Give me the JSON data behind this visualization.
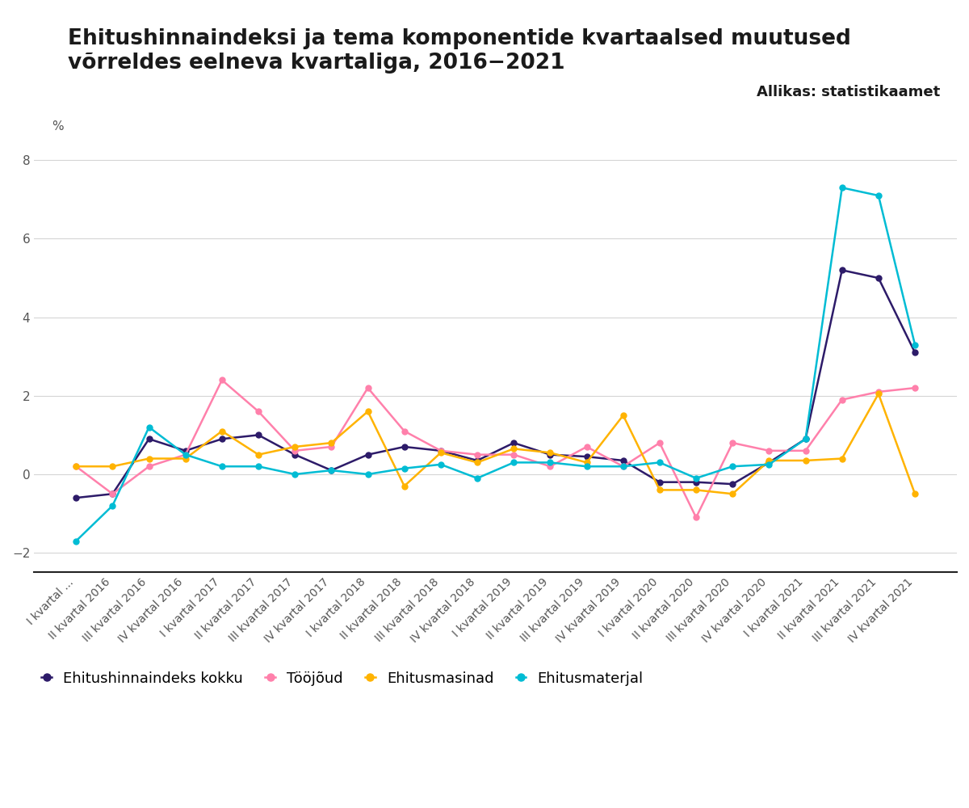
{
  "title_line1": "Ehitushinnaindeksi ja tema komponentide kvartaalsed muutused",
  "title_line2": "võrreldes eelneva kvartaliga, 2016−2021",
  "source": "Allikas: statistikaamet",
  "percent_label": "%",
  "ylim": [
    -2.5,
    8.5
  ],
  "yticks": [
    -2,
    0,
    2,
    4,
    6,
    8
  ],
  "background_color": "#ffffff",
  "colors": {
    "Ehitushinnaindeks kokku": "#2d1b69",
    "Tööjõud": "#ff80ab",
    "Ehitusmasinad": "#ffb300",
    "Ehitusmaterjal": "#00bcd4"
  },
  "series_data": {
    "Ehitushinnaindeks kokku": [
      -0.6,
      -0.5,
      0.9,
      0.6,
      0.9,
      1.0,
      0.5,
      0.1,
      0.5,
      0.7,
      0.6,
      0.35,
      0.8,
      0.5,
      0.45,
      0.35,
      -0.2,
      -0.2,
      -0.25,
      0.3,
      0.9,
      5.2,
      5.0,
      3.1
    ],
    "Tööjõud": [
      0.2,
      -0.5,
      0.2,
      0.5,
      2.4,
      1.6,
      0.6,
      0.7,
      2.2,
      1.1,
      0.6,
      0.5,
      0.5,
      0.2,
      0.7,
      0.2,
      0.8,
      -1.1,
      0.8,
      0.6,
      0.6,
      1.9,
      2.1,
      2.2
    ],
    "Ehitusmasinad": [
      0.2,
      0.2,
      0.4,
      0.4,
      1.1,
      0.5,
      0.7,
      0.8,
      1.6,
      -0.3,
      0.55,
      0.3,
      0.65,
      0.55,
      0.3,
      1.5,
      -0.4,
      -0.4,
      -0.5,
      0.35,
      0.35,
      0.4,
      2.05,
      -0.5
    ],
    "Ehitusmaterjal": [
      -1.7,
      -0.8,
      1.2,
      0.5,
      0.2,
      0.2,
      0.0,
      0.1,
      0.0,
      0.15,
      0.25,
      -0.1,
      0.3,
      0.3,
      0.2,
      0.2,
      0.3,
      -0.1,
      0.2,
      0.25,
      0.9,
      7.3,
      7.1,
      3.3
    ]
  },
  "x_labels": [
    "I kvartal ...",
    "II kvartal 2016",
    "III kvartal 2016",
    "IV kvartal 2016",
    "I kvartal 2017",
    "II kvartal 2017",
    "III kvartal 2017",
    "IV kvartal 2017",
    "I kvartal 2018",
    "II kvartal 2018",
    "III kvartal 2018",
    "IV kvartal 2018",
    "I kvartal 2019",
    "II kvartal 2019",
    "III kvartal 2019",
    "IV kvartal 2019",
    "I kvartal 2020",
    "II kvartal 2020",
    "III kvartal 2020",
    "IV kvartal 2020",
    "I kvartal 2021",
    "II kvartal 2021",
    "III kvartal 2021",
    "IV kvartal 2021"
  ],
  "legend_order": [
    "Ehitushinnaindeks kokku",
    "Tööjõud",
    "Ehitusmasinad",
    "Ehitusmaterjal"
  ],
  "grid_color": "#d5d5d5",
  "tick_color": "#555555",
  "spine_color": "#222222",
  "title_fontsize": 19,
  "source_fontsize": 13,
  "tick_fontsize": 10,
  "ytick_fontsize": 11,
  "legend_fontsize": 13,
  "linewidth": 1.8,
  "markersize": 5
}
